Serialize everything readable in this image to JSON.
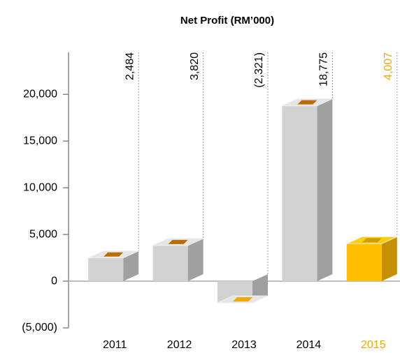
{
  "chart_data": {
    "type": "bar",
    "title": "Net Profit (RM’000)",
    "categories": [
      "2011",
      "2012",
      "2013",
      "2014",
      "2015"
    ],
    "values": [
      2484,
      3820,
      -2321,
      18775,
      4007
    ],
    "value_labels": [
      "2,484",
      "3,820",
      "(2,321)",
      "18,775",
      "4,007"
    ],
    "colors": [
      "#c8c8c8",
      "#c8c8c8",
      "#c8c8c8",
      "#c8c8c8",
      "#f7b500"
    ],
    "label_colors": [
      "#000000",
      "#000000",
      "#000000",
      "#000000",
      "#f0a800"
    ],
    "ylim": [
      -5000,
      24500
    ],
    "yticks": [
      {
        "value": -5000,
        "label": "(5,000)"
      },
      0,
      {
        "value": 5000,
        "label": "5,000"
      },
      {
        "value": 10000,
        "label": "10,000"
      },
      {
        "value": 15000,
        "label": "15,000"
      },
      {
        "value": 20000,
        "label": "20,000"
      }
    ]
  }
}
